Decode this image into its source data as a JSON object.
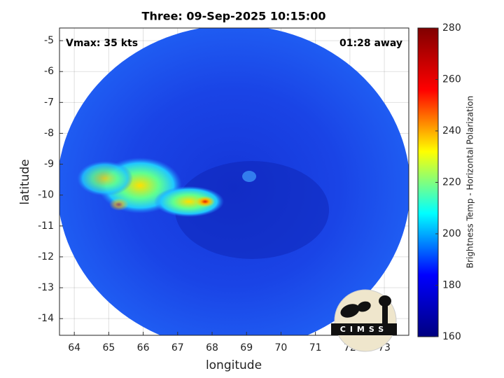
{
  "chart_data": {
    "type": "image",
    "title": "Three: 09-Sep-2025 10:15:00",
    "x_label": "longitude",
    "y_label": "latitude",
    "annotations": [
      "Vmax: 35 kts",
      "01:28 away"
    ],
    "xlim": [
      63.57,
      73.71
    ],
    "ylim": [
      -14.54,
      -4.59
    ],
    "xticks": [
      64,
      65,
      66,
      67,
      68,
      69,
      70,
      71,
      72,
      73
    ],
    "yticks": [
      -14,
      -13,
      -12,
      -11,
      -10,
      -9,
      -8,
      -7,
      -6,
      -5
    ],
    "grid": true,
    "colorbar": {
      "label": "Brightness Temp - Horizontal Polarization",
      "colormap": "jet",
      "clim": [
        160,
        280
      ],
      "ticks": [
        160,
        180,
        200,
        220,
        240,
        260,
        280
      ]
    },
    "logo": "CIMSS"
  }
}
